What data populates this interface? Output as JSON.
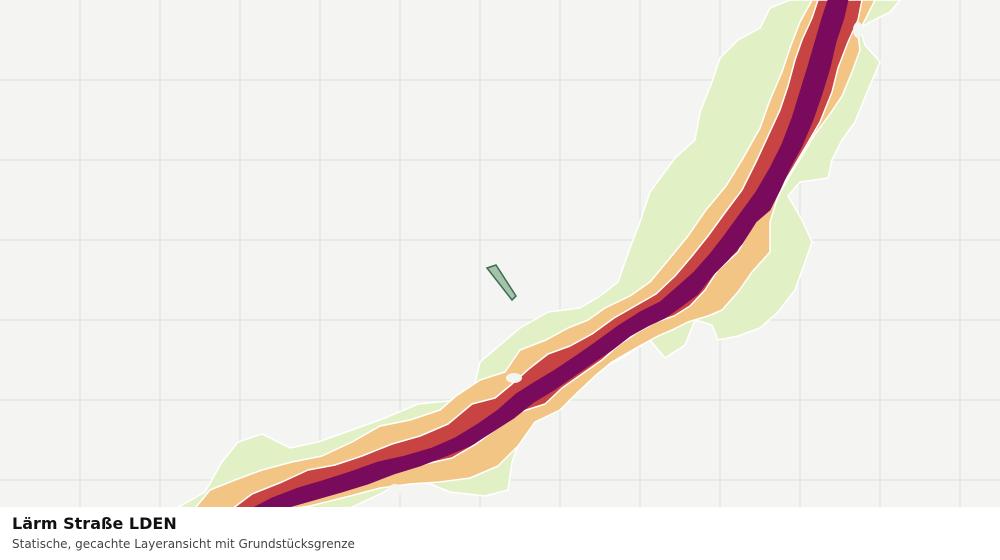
{
  "map": {
    "layer": "noise-road-lden",
    "zones": [
      {
        "name": "zone-outer",
        "color": "#e2f0c6",
        "edge": "#ffffff"
      },
      {
        "name": "zone-low",
        "color": "#f3c585",
        "edge": "#ffffff"
      },
      {
        "name": "zone-mid",
        "color": "#c84443",
        "edge": "#ffffff"
      },
      {
        "name": "zone-high",
        "color": "#7a0a5c",
        "edge": "#ffffff"
      }
    ],
    "parcel_color": "#a5c2ad",
    "parcel_border": "#3c6b4d",
    "grid_color": "#dcdfdb",
    "background": "#f4f5f3"
  },
  "legend": {
    "title": "Lärm Straße LDEN",
    "subtitle": "Statische, gecachte Layeransicht mit Grundstücksgrenze"
  }
}
